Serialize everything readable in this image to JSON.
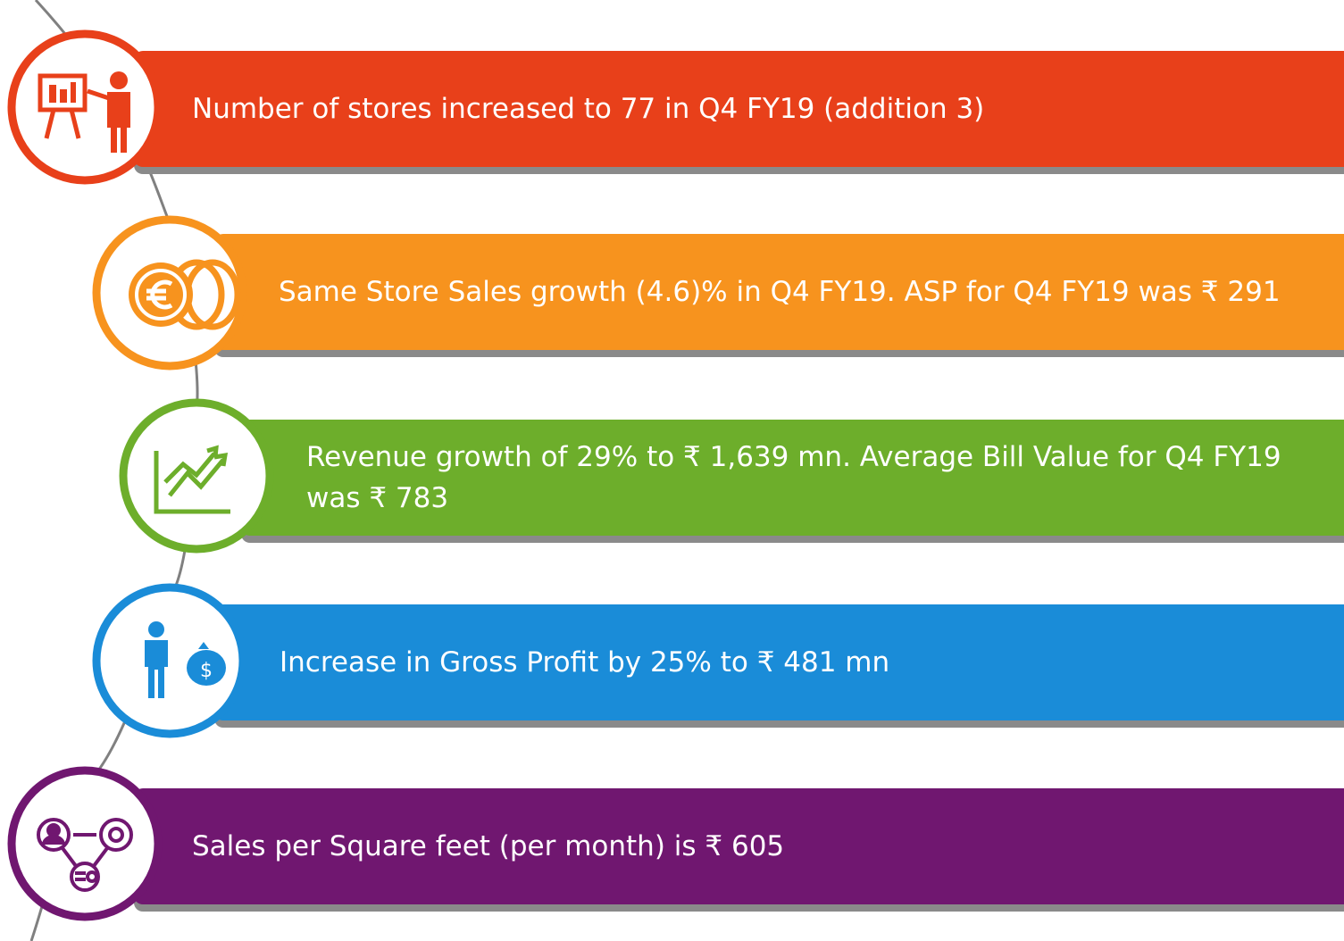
{
  "items": [
    {
      "text": "Number of stores increased to 77 in Q4 FY19 (addition 3)"
    },
    {
      "text": "Same Store Sales growth  (4.6)% in Q4 FY19. ASP for Q4 FY19 was ₹ 291"
    },
    {
      "text": "Revenue growth of  29% to ₹ 1,639 mn. Average Bill Value for Q4 FY19 was ₹ 783"
    },
    {
      "text": "Increase in Gross Profit  by 25% to ₹ 481 mn"
    },
    {
      "text": "Sales per Square feet (per month) is ₹ 605"
    }
  ]
}
